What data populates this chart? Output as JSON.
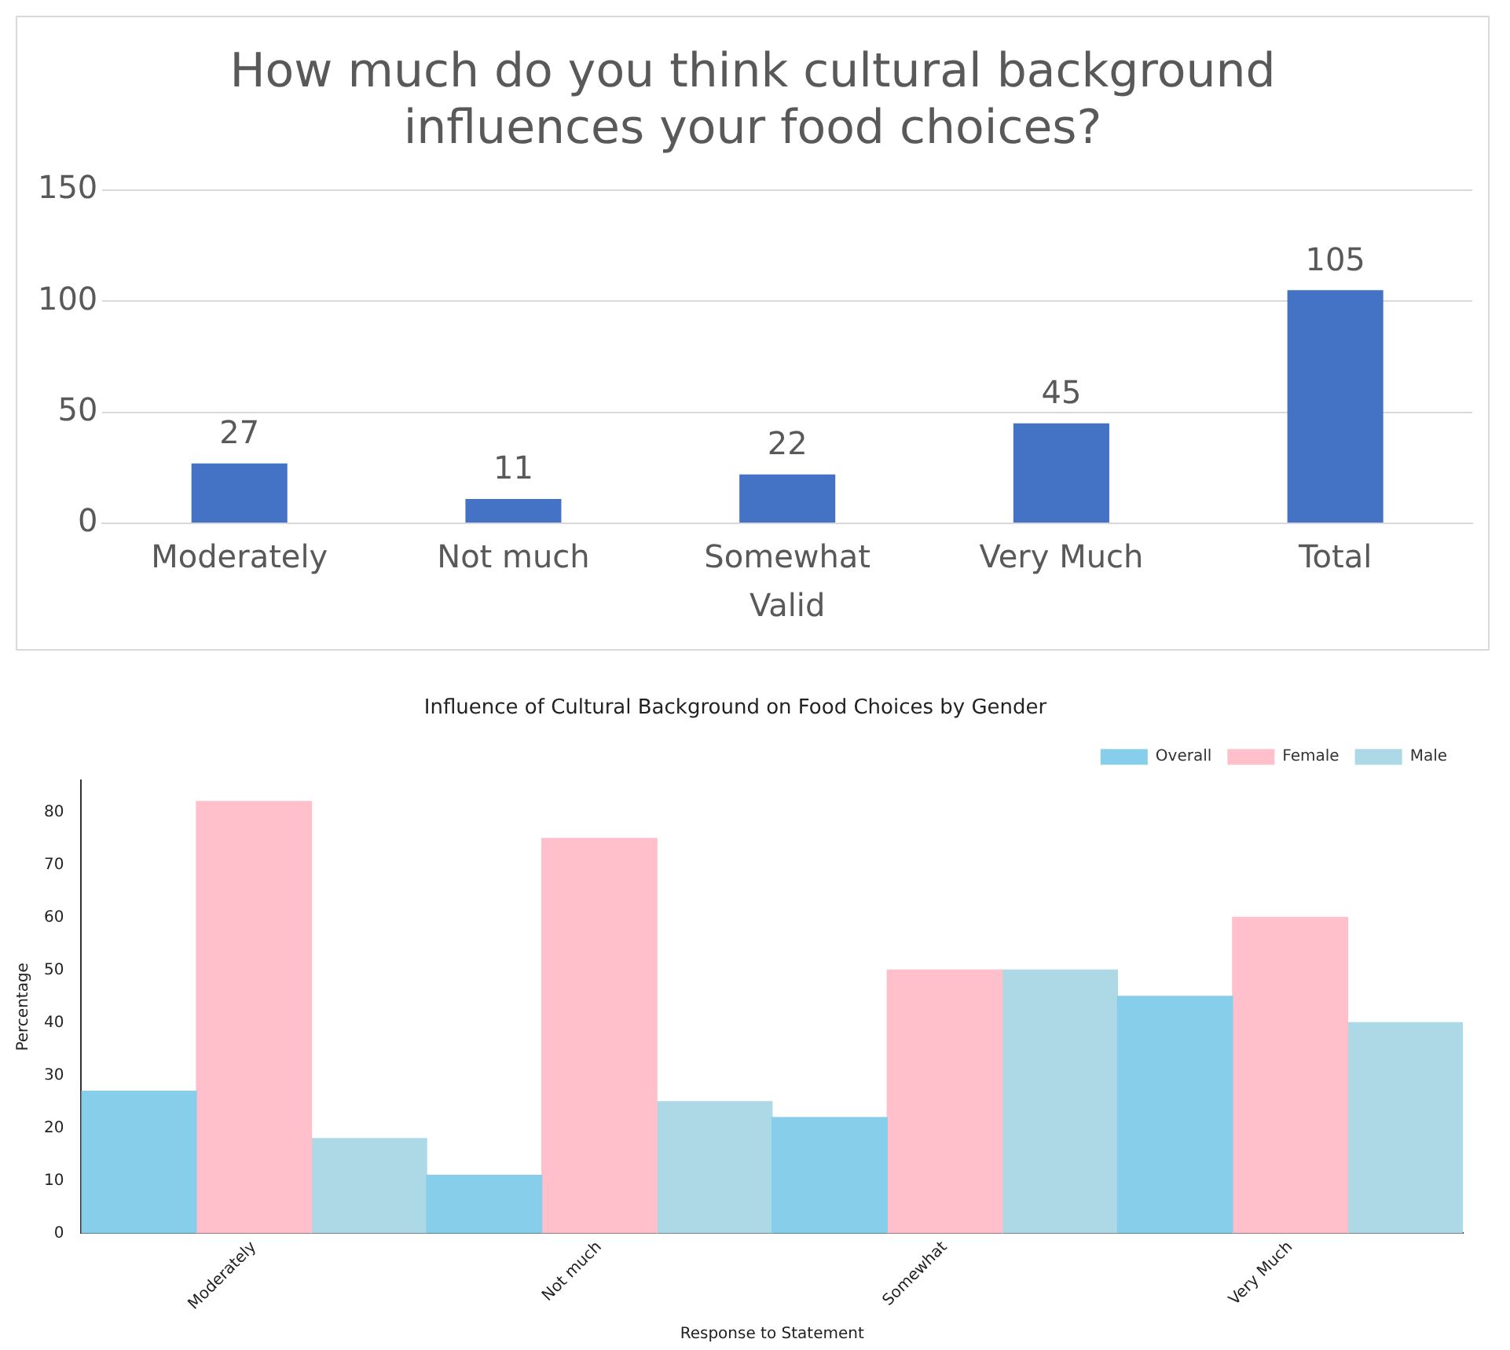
{
  "chart_data": [
    {
      "type": "bar",
      "title": "How much do you think cultural background influences your food choices?",
      "xlabel": "Valid",
      "categories": [
        "Moderately",
        "Not much",
        "Somewhat",
        "Very Much",
        "Total"
      ],
      "values": [
        27,
        11,
        22,
        45,
        105
      ],
      "color": "#4472c4",
      "ylim": [
        0,
        150
      ],
      "yticks": [
        0,
        50,
        100,
        150
      ],
      "grid": "y",
      "data_labels": true,
      "legend": false
    },
    {
      "type": "bar",
      "title": "Influence of Cultural Background on Food Choices by Gender",
      "xlabel": "Response to Statement",
      "ylabel": "Percentage",
      "categories": [
        "Moderately",
        "Not much",
        "Somewhat",
        "Very Much"
      ],
      "series": [
        {
          "name": "Overall",
          "color": "#87ceeb",
          "values": [
            27,
            11,
            22,
            45
          ]
        },
        {
          "name": "Female",
          "color": "#ffc0cb",
          "values": [
            82,
            75,
            50,
            60
          ]
        },
        {
          "name": "Male",
          "color": "#add8e6",
          "values": [
            18,
            25,
            50,
            40
          ]
        }
      ],
      "ylim": [
        0,
        86
      ],
      "yticks": [
        0,
        10,
        20,
        30,
        40,
        50,
        60,
        70,
        80
      ],
      "grid": false,
      "legend": "top right"
    }
  ]
}
